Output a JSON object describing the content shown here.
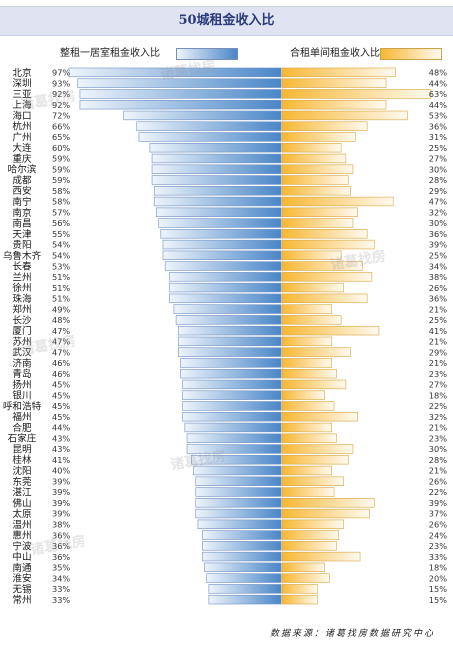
{
  "chart_data": {
    "type": "bar",
    "title": "50城租金收入比",
    "series": [
      {
        "name": "整租一居室租金收入比",
        "values": [
          97,
          93,
          92,
          92,
          72,
          66,
          65,
          60,
          59,
          59,
          59,
          58,
          58,
          57,
          56,
          55,
          54,
          54,
          53,
          51,
          51,
          51,
          49,
          48,
          47,
          47,
          47,
          46,
          46,
          45,
          45,
          45,
          45,
          44,
          43,
          43,
          41,
          40,
          39,
          39,
          39,
          39,
          38,
          36,
          36,
          36,
          35,
          34,
          33,
          33
        ]
      },
      {
        "name": "合租单间租金收入比",
        "values": [
          48,
          44,
          63,
          44,
          53,
          36,
          31,
          25,
          27,
          30,
          28,
          29,
          47,
          32,
          30,
          36,
          39,
          25,
          34,
          38,
          26,
          36,
          21,
          25,
          41,
          21,
          29,
          21,
          23,
          27,
          18,
          22,
          32,
          21,
          23,
          30,
          28,
          21,
          26,
          22,
          39,
          37,
          26,
          24,
          23,
          33,
          18,
          20,
          15,
          15
        ]
      }
    ],
    "categories": [
      "北京",
      "深圳",
      "三亚",
      "上海",
      "海口",
      "杭州",
      "广州",
      "大连",
      "重庆",
      "哈尔滨",
      "成都",
      "西安",
      "南宁",
      "南京",
      "南昌",
      "天津",
      "贵阳",
      "乌鲁木齐",
      "长春",
      "兰州",
      "徐州",
      "珠海",
      "郑州",
      "长沙",
      "厦门",
      "苏州",
      "武汉",
      "济南",
      "青岛",
      "扬州",
      "银川",
      "呼和浩特",
      "福州",
      "合肥",
      "石家庄",
      "昆明",
      "桂林",
      "沈阳",
      "东莞",
      "湛江",
      "佛山",
      "太原",
      "温州",
      "惠州",
      "宁波",
      "中山",
      "南通",
      "淮安",
      "无锡",
      "常州"
    ],
    "legend_placement": "top",
    "grid": false
  },
  "watermark": {
    "text": "诸葛找房"
  },
  "source": "数据来源：诸葛找房数据研究中心",
  "colors": {
    "left_dark": "#4a86c8",
    "left_light": "#eef4fb",
    "right_dark": "#f7b733",
    "right_light": "#fffaf0",
    "title_bg": "#dfe3f2"
  }
}
